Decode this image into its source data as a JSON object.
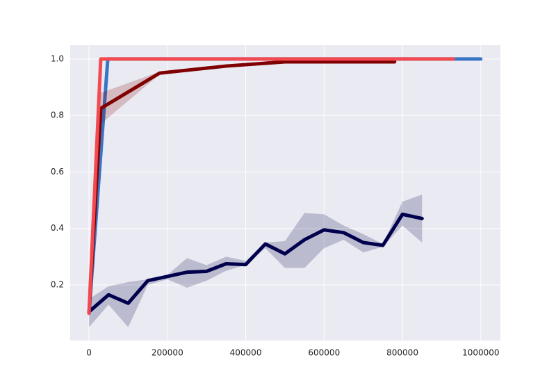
{
  "chart_data": {
    "type": "line",
    "xlim": [
      -48000,
      1050000
    ],
    "ylim": [
      0.003,
      1.049
    ],
    "xticks": [
      0,
      200000,
      400000,
      600000,
      800000,
      1000000
    ],
    "yticks": [
      0.2,
      0.4,
      0.6,
      0.8,
      {
        "value": 1,
        "label": "1.0"
      }
    ],
    "grid": true,
    "background": "#eaeaf2",
    "grid_color": "#ffffff",
    "series": [
      {
        "color": "#3a75c4",
        "x": [
          0,
          48000,
          1000000
        ],
        "values": [
          0.1,
          1.0,
          1.0
        ]
      },
      {
        "color": "#800000",
        "x": [
          0,
          30000,
          180000,
          350000,
          500000,
          780000
        ],
        "values": [
          0.1,
          0.825,
          0.95,
          0.975,
          0.99,
          0.99
        ],
        "lower": [
          0.1,
          0.77,
          0.945,
          0.97,
          0.985,
          0.985
        ],
        "upper": [
          0.1,
          0.88,
          0.955,
          0.98,
          0.995,
          0.995
        ]
      },
      {
        "color": "#00004d",
        "x": [
          0,
          50000,
          100000,
          150000,
          200000,
          250000,
          300000,
          350000,
          400000,
          450000,
          500000,
          550000,
          600000,
          650000,
          700000,
          750000,
          800000,
          850000
        ],
        "values": [
          0.105,
          0.165,
          0.135,
          0.215,
          0.23,
          0.245,
          0.248,
          0.275,
          0.272,
          0.345,
          0.31,
          0.36,
          0.395,
          0.385,
          0.35,
          0.34,
          0.45,
          0.435
        ],
        "lower": [
          0.05,
          0.13,
          0.05,
          0.2,
          0.22,
          0.19,
          0.215,
          0.25,
          0.27,
          0.33,
          0.26,
          0.26,
          0.33,
          0.36,
          0.315,
          0.335,
          0.41,
          0.35
        ],
        "upper": [
          0.15,
          0.195,
          0.21,
          0.22,
          0.235,
          0.295,
          0.27,
          0.3,
          0.285,
          0.35,
          0.355,
          0.455,
          0.45,
          0.41,
          0.38,
          0.345,
          0.495,
          0.52
        ]
      },
      {
        "color": "#f24a50",
        "x": [
          0,
          30000,
          930000
        ],
        "values": [
          0.1,
          1.0,
          1.0
        ]
      }
    ]
  }
}
